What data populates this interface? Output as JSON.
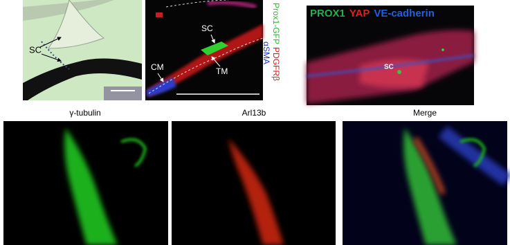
{
  "panels": [
    {
      "labels": [
        "SC"
      ]
    },
    {
      "labels": [
        "SC",
        "CM",
        "TM"
      ],
      "side_labels": [
        "Prox1-GFP",
        "PDGFRβ",
        "αSMA"
      ]
    },
    {
      "title_parts": [
        "PROX1",
        "YAP",
        "VE-cadherin"
      ],
      "labels": [
        "SC"
      ]
    }
  ],
  "bottom_panels": [
    {
      "title": "γ-tubulin"
    },
    {
      "title": "Arl13b"
    },
    {
      "title": "Merge"
    }
  ]
}
